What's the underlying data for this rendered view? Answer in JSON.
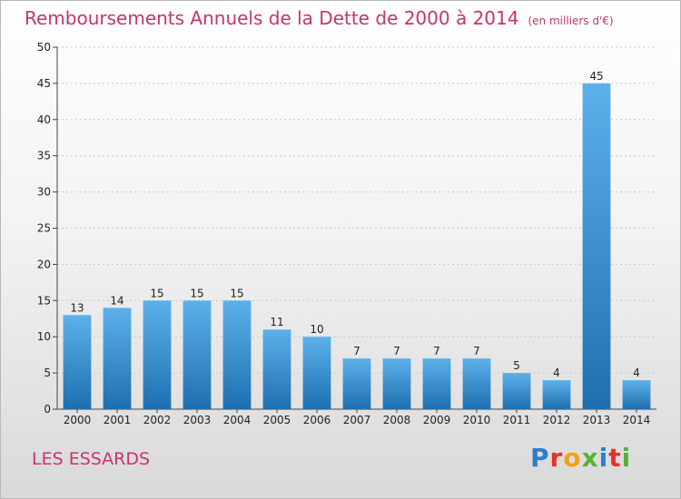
{
  "header": {
    "title": "Remboursements Annuels de la Dette de 2000 à 2014",
    "unit": "(en milliers d'€)"
  },
  "footer": {
    "commune": "LES ESSARDS",
    "logo": "Proxiti"
  },
  "colors": {
    "accent": "#c8336e",
    "bar_top": "#5cb1ea",
    "bar_bottom": "#1f6fb0"
  },
  "chart_data": {
    "type": "bar",
    "title": "Remboursements Annuels de la Dette de 2000 à 2014",
    "xlabel": "",
    "ylabel": "",
    "categories": [
      "2000",
      "2001",
      "2002",
      "2003",
      "2004",
      "2005",
      "2006",
      "2007",
      "2008",
      "2009",
      "2010",
      "2011",
      "2012",
      "2013",
      "2014"
    ],
    "values": [
      13,
      14,
      15,
      15,
      15,
      11,
      10,
      7,
      7,
      7,
      7,
      5,
      4,
      45,
      4
    ],
    "ylim": [
      0,
      50
    ],
    "yticks": [
      0,
      5,
      10,
      15,
      20,
      25,
      30,
      35,
      40,
      45,
      50
    ],
    "grid": true,
    "data_labels": true
  }
}
